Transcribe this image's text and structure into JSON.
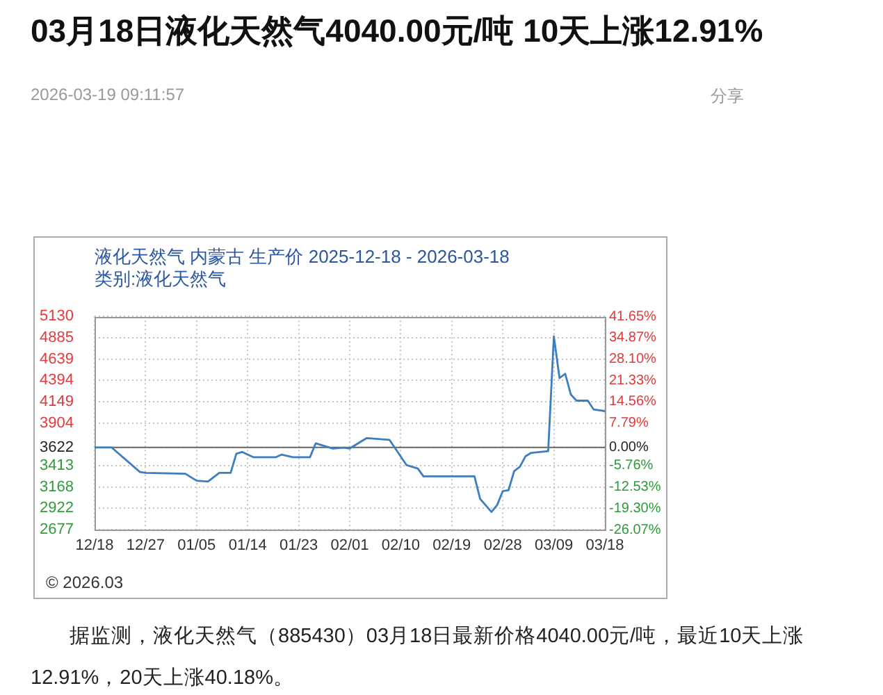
{
  "chart_data": {
    "type": "line",
    "title": "03月18日液化天然气4040.00元/吨 10天上涨12.91%",
    "subtitle": "液化天然气 内蒙古 生产价 2025-12-18 - 2026-03-18",
    "annotations": [
      "2026-03-19 09:11:57",
      "分享",
      "类别:液化天然气",
      "© 2026.03",
      "据监测，液化天然气（885430）03月18日最新价格4040.00元/吨，最近10天上涨12.91%，20天上涨40.18%。"
    ],
    "x": [
      "2025-12-18",
      "2025-12-21",
      "2025-12-26",
      "2025-12-27",
      "2026-01-03",
      "2026-01-05",
      "2026-01-07",
      "2026-01-09",
      "2026-01-11",
      "2026-01-12",
      "2026-01-13",
      "2026-01-15",
      "2026-01-19",
      "2026-01-20",
      "2026-01-22",
      "2026-01-25",
      "2026-01-26",
      "2026-01-28",
      "2026-01-29",
      "2026-01-31",
      "2026-02-01",
      "2026-02-04",
      "2026-02-06",
      "2026-02-08",
      "2026-02-11",
      "2026-02-13",
      "2026-02-14",
      "2026-02-23",
      "2026-02-24",
      "2026-02-26",
      "2026-02-27",
      "2026-02-28",
      "2026-03-01",
      "2026-03-02",
      "2026-03-03",
      "2026-03-04",
      "2026-03-05",
      "2026-03-08",
      "2026-03-09",
      "2026-03-10",
      "2026-03-11",
      "2026-03-12",
      "2026-03-13",
      "2026-03-15",
      "2026-03-16",
      "2026-03-18"
    ],
    "values": [
      3622,
      3622,
      3340,
      3330,
      3320,
      3240,
      3230,
      3330,
      3330,
      3550,
      3570,
      3510,
      3510,
      3540,
      3510,
      3510,
      3670,
      3630,
      3610,
      3620,
      3610,
      3730,
      3720,
      3710,
      3420,
      3380,
      3290,
      3290,
      3030,
      2880,
      2960,
      3120,
      3130,
      3350,
      3400,
      3520,
      3560,
      3580,
      4900,
      4420,
      4470,
      4230,
      4160,
      4160,
      4060,
      4040
    ],
    "color": "#3d7ebf",
    "xlim": [
      "2025-12-18",
      "2026-03-18"
    ],
    "xticks": [
      {
        "value": "2025-12-18",
        "label": "12/18"
      },
      {
        "value": "2025-12-27",
        "label": "12/27"
      },
      {
        "value": "2026-01-05",
        "label": "01/05"
      },
      {
        "value": "2026-01-14",
        "label": "01/14"
      },
      {
        "value": "2026-01-23",
        "label": "01/23"
      },
      {
        "value": "2026-02-01",
        "label": "02/01"
      },
      {
        "value": "2026-02-10",
        "label": "02/10"
      },
      {
        "value": "2026-02-19",
        "label": "02/19"
      },
      {
        "value": "2026-02-28",
        "label": "02/28"
      },
      {
        "value": "2026-03-09",
        "label": "03/09"
      },
      {
        "value": "2026-03-18",
        "label": "03/18"
      }
    ],
    "ylim": [
      2677,
      5130
    ],
    "yticks": [
      2677,
      2922,
      3168,
      3413,
      3622,
      3904,
      4149,
      4394,
      4639,
      4885,
      5130
    ],
    "y2lim": [
      -26.07,
      41.65
    ],
    "y2ticks": [
      {
        "value": -26.07,
        "label": "-26.07%"
      },
      {
        "value": -19.3,
        "label": "-19.30%"
      },
      {
        "value": -12.53,
        "label": "-12.53%"
      },
      {
        "value": -5.76,
        "label": "-5.76%"
      },
      {
        "value": 0,
        "label": "0.00%"
      },
      {
        "value": 7.79,
        "label": "7.79%"
      },
      {
        "value": 14.56,
        "label": "14.56%"
      },
      {
        "value": 21.33,
        "label": "21.33%"
      },
      {
        "value": 28.1,
        "label": "28.10%"
      },
      {
        "value": 34.87,
        "label": "34.87%"
      },
      {
        "value": 41.65,
        "label": "41.65%"
      }
    ],
    "ref_lines": [
      {
        "axis": "y",
        "value": 3622,
        "color": "#666666"
      }
    ],
    "grid": true
  }
}
